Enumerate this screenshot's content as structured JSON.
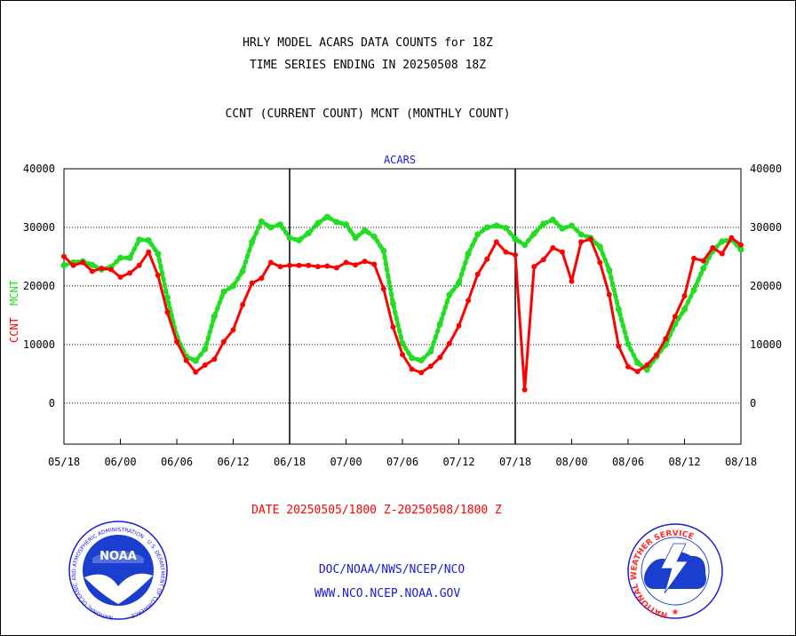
{
  "header": {
    "title_line1": "HRLY MODEL ACARS DATA COUNTS for 18Z",
    "title_line2": "TIME SERIES ENDING IN 20250508 18Z",
    "subtitle": "CCNT (CURRENT COUNT) MCNT (MONTHLY COUNT)"
  },
  "footer": {
    "date_range": "DATE 20250505/1800 Z-20250508/1800 Z",
    "org_path": "DOC/NOAA/NWS/NCEP/NCO",
    "website": "WWW.NCO.NCEP.NOAA.GOV",
    "noaa_logo_text": "NOAA",
    "noaa_ring_text": "NATIONAL OCEANIC AND ATMOSPHERIC ADMINISTRATION · U.S. DEPARTMENT OF COMMERCE",
    "nws_ring_text": "NATIONAL WEATHER SERVICE"
  },
  "colors": {
    "ccnt": "#ff0000",
    "mcnt": "#22dd22",
    "blue_text": "#1a1ad6",
    "grid": "#000000"
  },
  "chart_data": {
    "type": "line",
    "title": "ACARS",
    "ylabel_left_ccnt": "CCNT",
    "ylabel_left_mcnt": "MCNT",
    "x_tick_labels": [
      "05/18",
      "06/00",
      "06/06",
      "06/12",
      "06/18",
      "07/00",
      "07/06",
      "07/12",
      "07/18",
      "08/00",
      "08/06",
      "08/12",
      "08/18"
    ],
    "x_range_hours": [
      0,
      72
    ],
    "y_ticks": [
      0,
      10000,
      20000,
      30000,
      40000
    ],
    "y_tick_labels": [
      "0",
      "10000",
      "20000",
      "30000",
      "40000"
    ],
    "ylim": [
      -7000,
      40000
    ],
    "grid": "horizontal dotted",
    "day_separators_hours": [
      24,
      48
    ],
    "series": [
      {
        "name": "CCNT",
        "style": "solid",
        "values": [
          25000,
          23500,
          24000,
          22500,
          23000,
          22800,
          21500,
          22200,
          23500,
          25800,
          21800,
          15500,
          10500,
          7300,
          5300,
          6500,
          7500,
          10500,
          12500,
          16800,
          20500,
          21300,
          24000,
          23300,
          23500,
          23500,
          23500,
          23300,
          23400,
          23100,
          24000,
          23600,
          24200,
          23700,
          19500,
          13000,
          8300,
          5800,
          5200,
          6300,
          7800,
          10200,
          13200,
          17500,
          22000,
          24600,
          27500,
          25800,
          25300,
          2300,
          23300,
          24500,
          26500,
          25800,
          20800,
          27500,
          28000,
          24000,
          18500,
          9700,
          6200,
          5400,
          6500,
          8200,
          11000,
          14800,
          18300,
          24700,
          24300,
          26500,
          25500,
          28200,
          27000
        ]
      },
      {
        "name": "MCNT",
        "style": "dotted",
        "values": [
          23500,
          24000,
          24200,
          23600,
          22800,
          23200,
          24800,
          24800,
          27900,
          27800,
          25500,
          18000,
          11300,
          8000,
          7200,
          9200,
          14800,
          19000,
          20000,
          22500,
          27500,
          31000,
          30000,
          30500,
          28200,
          27800,
          29000,
          30700,
          31800,
          30900,
          30500,
          28200,
          29500,
          28400,
          26000,
          17000,
          10200,
          7700,
          7300,
          8800,
          13500,
          18500,
          20500,
          25500,
          28800,
          30000,
          30300,
          29900,
          28000,
          27000,
          28900,
          30600,
          31300,
          29800,
          30300,
          28800,
          28200,
          26700,
          22700,
          16000,
          10100,
          6900,
          5700,
          7900,
          10000,
          13500,
          16000,
          19300,
          23000,
          26000,
          27600,
          27900,
          26200
        ]
      }
    ]
  }
}
